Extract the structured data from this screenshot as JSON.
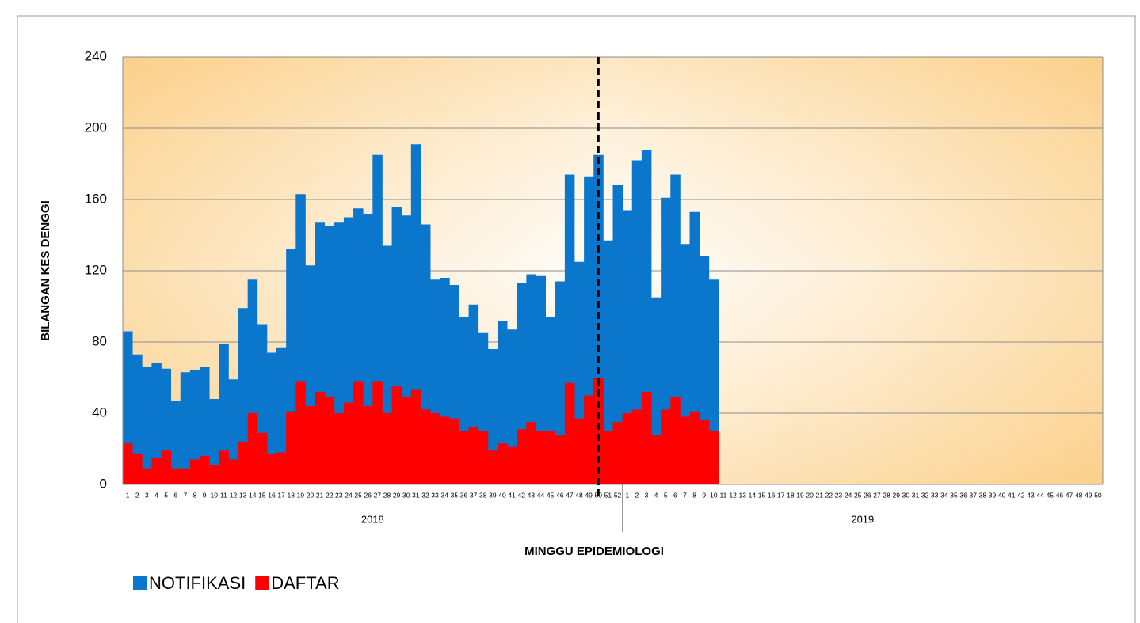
{
  "chart_data": {
    "type": "bar",
    "x_label": "MINGGU EPIDEMIOLOGI",
    "y_label": "BILANGAN KES DENGGI",
    "categories": [
      "1",
      "2",
      "3",
      "4",
      "5",
      "6",
      "7",
      "8",
      "9",
      "10",
      "11",
      "12",
      "13",
      "14",
      "15",
      "16",
      "17",
      "18",
      "19",
      "20",
      "21",
      "22",
      "23",
      "24",
      "25",
      "26",
      "27",
      "28",
      "29",
      "30",
      "31",
      "32",
      "33",
      "34",
      "35",
      "36",
      "37",
      "38",
      "39",
      "40",
      "41",
      "42",
      "43",
      "44",
      "45",
      "46",
      "47",
      "48",
      "49",
      "50",
      "51",
      "52",
      "1",
      "2",
      "3",
      "4",
      "5",
      "6",
      "7",
      "8",
      "9",
      "10",
      "11",
      "12",
      "13",
      "14",
      "15",
      "16",
      "17",
      "18",
      "19",
      "20",
      "21",
      "22",
      "23",
      "24",
      "25",
      "26",
      "27",
      "28",
      "29",
      "30",
      "31",
      "32",
      "33",
      "34",
      "35",
      "36",
      "37",
      "38",
      "39",
      "40",
      "41",
      "42",
      "43",
      "44",
      "45",
      "46",
      "47",
      "48",
      "49",
      "50"
    ],
    "x_groups": [
      "2018",
      "2019"
    ],
    "series": [
      {
        "name": "NOTIFIKASI",
        "color": "#0a77cc",
        "values": [
          86,
          73,
          66,
          68,
          65,
          47,
          63,
          64,
          66,
          48,
          79,
          59,
          99,
          115,
          90,
          74,
          77,
          132,
          163,
          123,
          147,
          145,
          147,
          150,
          155,
          152,
          185,
          134,
          156,
          151,
          191,
          146,
          115,
          116,
          112,
          94,
          101,
          85,
          76,
          92,
          87,
          113,
          118,
          117,
          94,
          114,
          174,
          125,
          173,
          185,
          137,
          168,
          154,
          182,
          188,
          105,
          161,
          174,
          135,
          153,
          128,
          115,
          null,
          null,
          null,
          null,
          null,
          null,
          null,
          null,
          null,
          null,
          null,
          null,
          null,
          null,
          null,
          null,
          null,
          null,
          null,
          null,
          null,
          null,
          null,
          null,
          null,
          null,
          null,
          null,
          null,
          null,
          null,
          null,
          null,
          null,
          null,
          null,
          null,
          null,
          null,
          null
        ]
      },
      {
        "name": "DAFTAR",
        "color": "#ff0000",
        "values": [
          23,
          17,
          9,
          15,
          19,
          9,
          9,
          14,
          16,
          11,
          19,
          14,
          24,
          40,
          29,
          17,
          18,
          41,
          58,
          44,
          52,
          49,
          40,
          46,
          58,
          44,
          58,
          40,
          55,
          49,
          53,
          42,
          40,
          38,
          37,
          30,
          32,
          30,
          19,
          23,
          21,
          31,
          35,
          30,
          30,
          28,
          57,
          37,
          50,
          60,
          30,
          35,
          40,
          42,
          52,
          28,
          42,
          49,
          38,
          41,
          36,
          30,
          null,
          null,
          null,
          null,
          null,
          null,
          null,
          null,
          null,
          null,
          null,
          null,
          null,
          null,
          null,
          null,
          null,
          null,
          null,
          null,
          null,
          null,
          null,
          null,
          null,
          null,
          null,
          null,
          null,
          null,
          null,
          null,
          null,
          null,
          null,
          null,
          null,
          null,
          null,
          null
        ]
      }
    ],
    "ylim": [
      0,
      240
    ],
    "yticks": [
      0,
      40,
      80,
      120,
      160,
      200,
      240
    ],
    "grid": true,
    "legend": "bottom-left"
  }
}
